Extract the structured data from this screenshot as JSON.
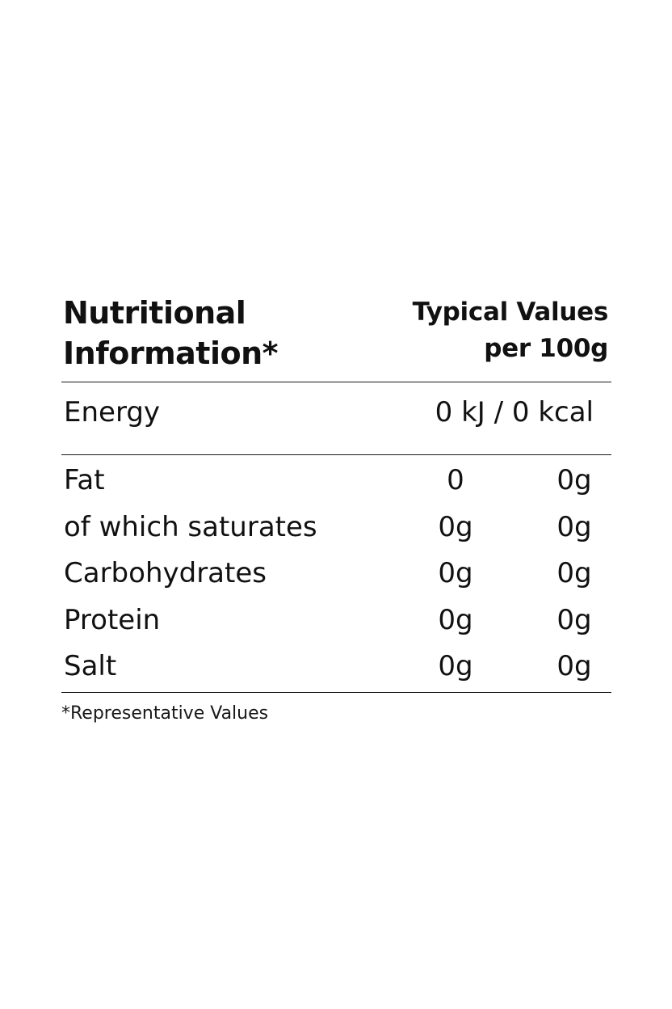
{
  "label": {
    "title_line1": "Nutritional",
    "title_line2": "Information*",
    "per_line1": "Typical Values",
    "per_line2": "per 100g",
    "energy": {
      "name": "Energy",
      "value": "0 kJ / 0 kcal"
    },
    "rows": [
      {
        "name": "Fat",
        "v1": "0",
        "v2": "0g"
      },
      {
        "name": "of which saturates",
        "v1": "0g",
        "v2": "0g"
      },
      {
        "name": "Carbohydrates",
        "v1": "0g",
        "v2": "0g"
      },
      {
        "name": "Protein",
        "v1": "0g",
        "v2": "0g"
      },
      {
        "name": "Salt",
        "v1": "0g",
        "v2": "0g"
      }
    ],
    "footnote": "*Representative Values"
  }
}
